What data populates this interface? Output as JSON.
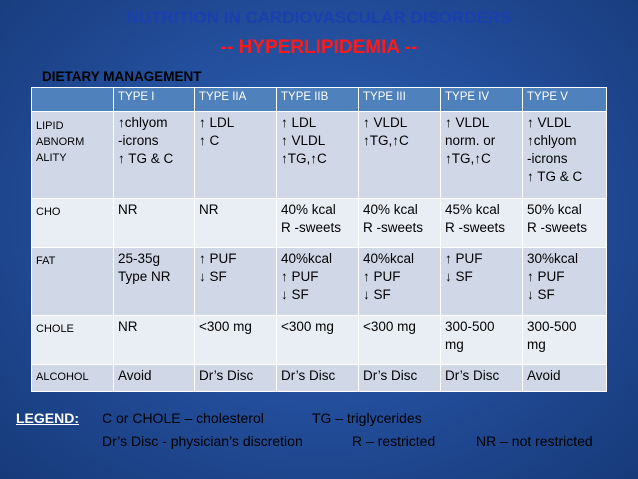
{
  "slide": {
    "title": "NUTRITION IN CARDIOVASCULAR DISORDERS",
    "subtitle": "-- HYPERLIPIDEMIA --",
    "section": "DIETARY MANAGEMENT"
  },
  "table": {
    "header": [
      "",
      "TYPE I",
      "TYPE IIA",
      "TYPE IIB",
      "TYPE III",
      "TYPE IV",
      "TYPE V"
    ],
    "rows": [
      {
        "label": [
          "LIPID",
          "ABNORM",
          "ALITY"
        ],
        "cells": [
          [
            "↑chlyom",
            "-icrons",
            "↑ TG & C"
          ],
          [
            "↑ LDL",
            "↑ C"
          ],
          [
            "↑ LDL",
            "↑ VLDL",
            "↑TG,↑C"
          ],
          [
            "↑ VLDL",
            "↑TG,↑C"
          ],
          [
            "↑ VLDL",
            "norm. or",
            "↑TG,↑C"
          ],
          [
            "↑ VLDL",
            "↑chlyom",
            "-icrons",
            "↑ TG & C"
          ]
        ]
      },
      {
        "label": [
          "CHO"
        ],
        "cells": [
          [
            "NR"
          ],
          [
            "NR"
          ],
          [
            "40% kcal",
            "R -sweets"
          ],
          [
            "40% kcal",
            "R -sweets"
          ],
          [
            "45% kcal",
            "R -sweets"
          ],
          [
            "50% kcal",
            "R -sweets"
          ]
        ]
      },
      {
        "label": [
          "FAT"
        ],
        "cells": [
          [
            "25-35g",
            "Type NR"
          ],
          [
            "↑ PUF",
            "↓ SF"
          ],
          [
            "40%kcal",
            "↑ PUF",
            "↓ SF"
          ],
          [
            "40%kcal",
            "↑ PUF",
            "↓ SF"
          ],
          [
            "↑ PUF",
            "↓ SF"
          ],
          [
            "30%kcal",
            "↑ PUF",
            "↓ SF"
          ]
        ]
      },
      {
        "label": [
          "CHOLE"
        ],
        "cells": [
          [
            "NR"
          ],
          [
            "<300 mg"
          ],
          [
            "<300 mg"
          ],
          [
            "<300 mg"
          ],
          [
            "300-500",
            "mg"
          ],
          [
            "300-500",
            "mg"
          ]
        ]
      },
      {
        "label": [
          "ALCOHOL"
        ],
        "cells": [
          [
            "Avoid"
          ],
          [
            "Dr’s Disc"
          ],
          [
            "Dr’s Disc"
          ],
          [
            "Dr’s Disc"
          ],
          [
            "Dr’s Disc"
          ],
          [
            "Avoid"
          ]
        ]
      }
    ]
  },
  "legend": {
    "label": "LEGEND:",
    "line1": [
      "C or CHOLE – cholesterol",
      "TG – triglycerides"
    ],
    "line2": [
      "Dr’s Disc  - physician’s discretion",
      "R – restricted",
      "NR – not restricted"
    ]
  }
}
